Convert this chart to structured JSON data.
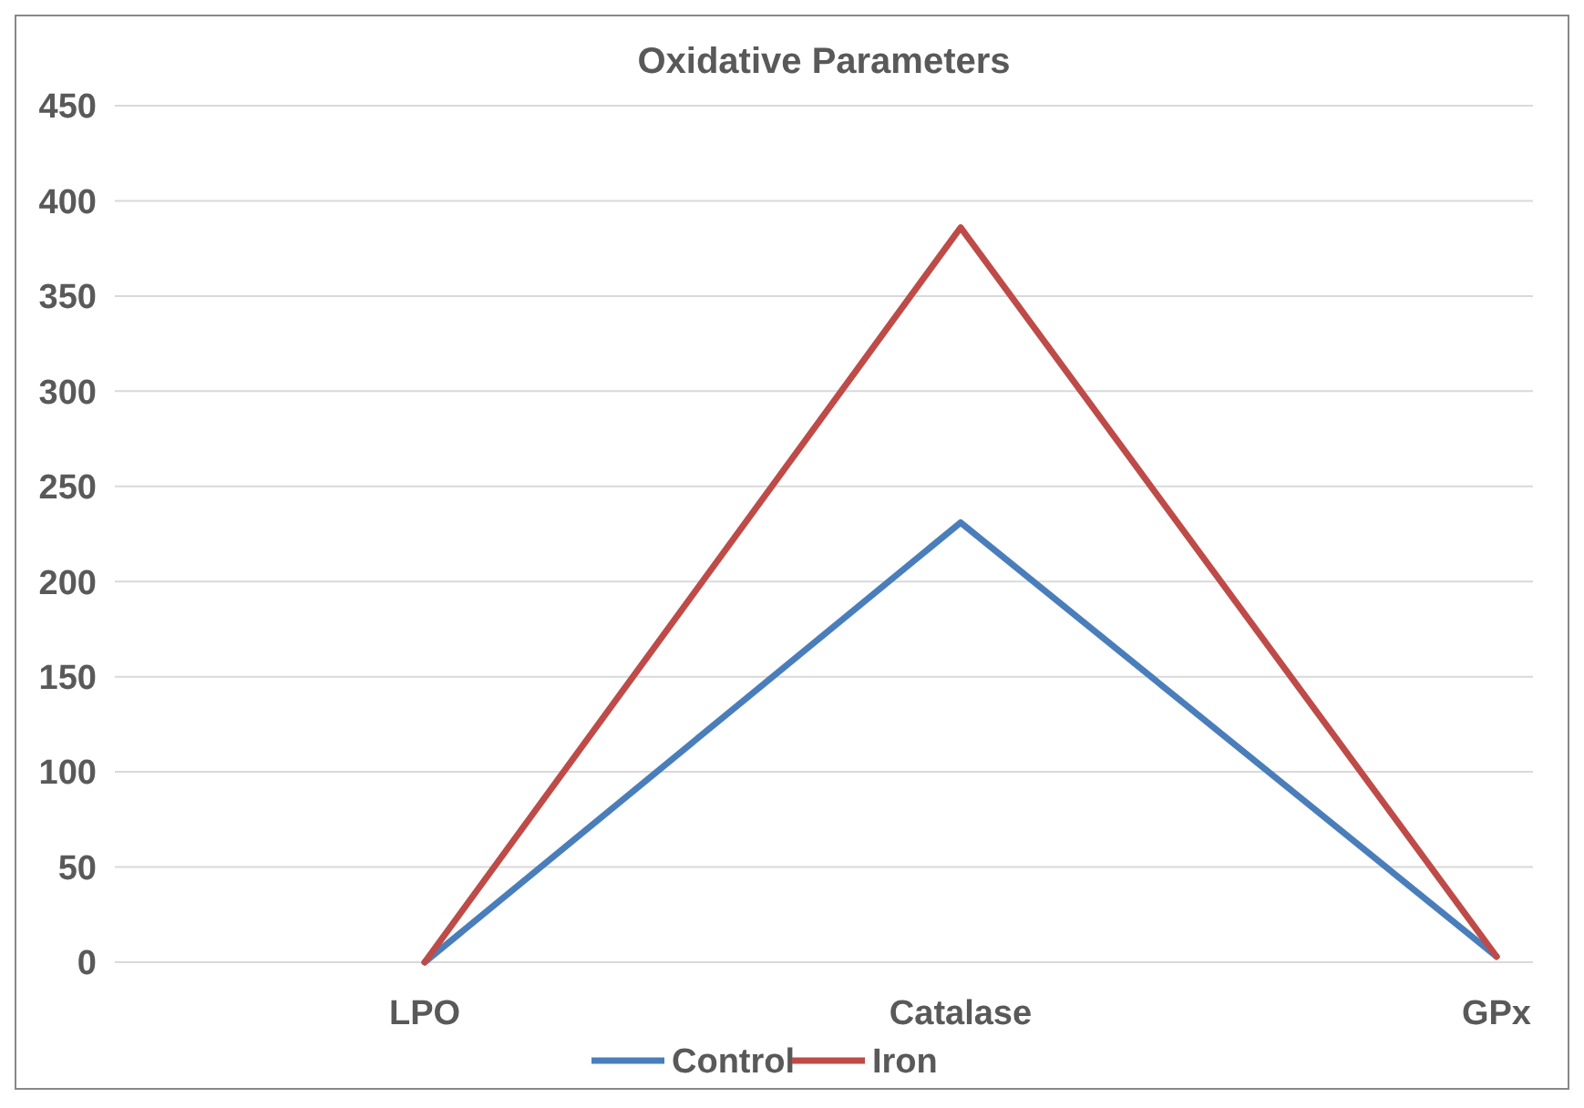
{
  "chart_data": {
    "type": "line",
    "title": "Oxidative Parameters",
    "categories": [
      "LPO",
      "Catalase",
      "GPx"
    ],
    "series": [
      {
        "name": "Control",
        "color": "#4a7ebb",
        "values": [
          0,
          231,
          3
        ]
      },
      {
        "name": "Iron",
        "color": "#be4b48",
        "values": [
          0,
          386,
          3
        ]
      }
    ],
    "ylim": [
      0,
      450
    ],
    "yticks": [
      0,
      50,
      100,
      150,
      200,
      250,
      300,
      350,
      400,
      450
    ],
    "grid": "y",
    "legend": "bottom",
    "marker": "none",
    "line_style": "solid"
  }
}
